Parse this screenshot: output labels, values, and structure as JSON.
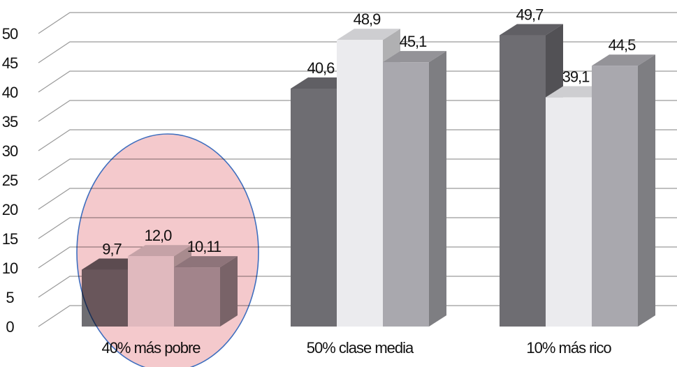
{
  "chart_data": {
    "type": "bar3d",
    "categories": [
      "40% más pobre",
      "50% clase media",
      "10% más rico"
    ],
    "series": [
      {
        "color": "#6e6d72",
        "values": [
          9.7,
          40.6,
          49.7
        ],
        "value_labels": [
          "9,7",
          "40,6",
          "49,7"
        ]
      },
      {
        "color": "#ebebee",
        "values": [
          12.0,
          48.9,
          39.1
        ],
        "value_labels": [
          "12,0",
          "48,9",
          "39,1"
        ]
      },
      {
        "color": "#a9a8ae",
        "values": [
          10.11,
          45.1,
          44.5
        ],
        "value_labels": [
          "10,11",
          "45,1",
          "44,5"
        ]
      }
    ],
    "ylim": [
      0,
      50
    ],
    "yticks": [
      0,
      5,
      10,
      15,
      20,
      25,
      30,
      35,
      40,
      45,
      50
    ],
    "grid": true
  }
}
